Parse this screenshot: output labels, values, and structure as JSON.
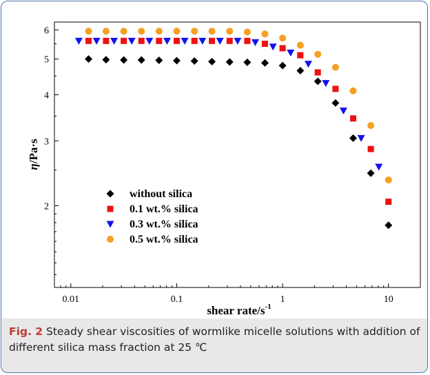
{
  "chart_data": {
    "type": "scatter",
    "xlabel": "shear rate/s",
    "xlabel_sup": "-1",
    "ylabel_main": "η",
    "ylabel_rest": "/Pa·s",
    "x_scale": "log",
    "y_scale": "log",
    "xlim": [
      0.007,
      20
    ],
    "ylim": [
      1.2,
      6.3
    ],
    "grid": false,
    "legend_position": "lower-left",
    "x_ticks": [
      {
        "value": 0.01,
        "label": "0.01"
      },
      {
        "value": 0.1,
        "label": "0.1"
      },
      {
        "value": 1,
        "label": "1"
      },
      {
        "value": 10,
        "label": "10"
      }
    ],
    "y_ticks": [
      {
        "value": 2,
        "label": "2"
      },
      {
        "value": 3,
        "label": "3"
      },
      {
        "value": 4,
        "label": "4"
      },
      {
        "value": 5,
        "label": "5"
      },
      {
        "value": 6,
        "label": "6"
      }
    ],
    "series": [
      {
        "name": "without silica",
        "marker": "diamond",
        "color": "#000000",
        "x": [
          0.0147,
          0.0215,
          0.0316,
          0.0464,
          0.0681,
          0.1,
          0.147,
          0.215,
          0.316,
          0.464,
          0.681,
          1.0,
          1.47,
          2.15,
          3.16,
          4.64,
          6.81,
          10.0
        ],
        "y": [
          5.0,
          4.98,
          4.97,
          4.97,
          4.96,
          4.95,
          4.94,
          4.92,
          4.91,
          4.9,
          4.88,
          4.8,
          4.65,
          4.35,
          3.8,
          3.05,
          2.45,
          1.77
        ]
      },
      {
        "name": "0.1 wt.% silica",
        "marker": "square",
        "color": "#ee1111",
        "x": [
          0.0147,
          0.0215,
          0.0316,
          0.0464,
          0.0681,
          0.1,
          0.147,
          0.215,
          0.316,
          0.464,
          0.681,
          1.0,
          1.47,
          2.15,
          3.16,
          4.64,
          6.81,
          10.0
        ],
        "y": [
          5.6,
          5.6,
          5.6,
          5.6,
          5.6,
          5.6,
          5.6,
          5.6,
          5.6,
          5.6,
          5.5,
          5.35,
          5.12,
          4.6,
          4.15,
          3.45,
          2.85,
          2.05
        ]
      },
      {
        "name": "0.3 wt.% silica",
        "marker": "triangle-down",
        "color": "#1111ee",
        "x": [
          0.0119,
          0.0175,
          0.0256,
          0.0376,
          0.0552,
          0.0811,
          0.119,
          0.175,
          0.256,
          0.376,
          0.552,
          0.811,
          1.19,
          1.75,
          2.56,
          3.76,
          5.52,
          8.11
        ],
        "y": [
          5.6,
          5.6,
          5.6,
          5.6,
          5.6,
          5.6,
          5.6,
          5.6,
          5.6,
          5.6,
          5.55,
          5.4,
          5.2,
          4.85,
          4.3,
          3.62,
          3.05,
          2.55
        ]
      },
      {
        "name": "0.5 wt.% silica",
        "marker": "circle",
        "color": "#f5a022",
        "x": [
          0.0147,
          0.0215,
          0.0316,
          0.0464,
          0.0681,
          0.1,
          0.147,
          0.215,
          0.316,
          0.464,
          0.681,
          1.0,
          1.47,
          2.15,
          3.16,
          4.64,
          6.81,
          10.0
        ],
        "y": [
          5.95,
          5.95,
          5.95,
          5.95,
          5.95,
          5.95,
          5.95,
          5.95,
          5.95,
          5.92,
          5.85,
          5.7,
          5.45,
          5.15,
          4.75,
          4.1,
          3.3,
          2.35
        ]
      }
    ]
  },
  "caption": {
    "label": "Fig. 2",
    "text": "Steady shear viscosities of wormlike micelle solutions with addition of different silica mass fraction at 25 ℃"
  }
}
